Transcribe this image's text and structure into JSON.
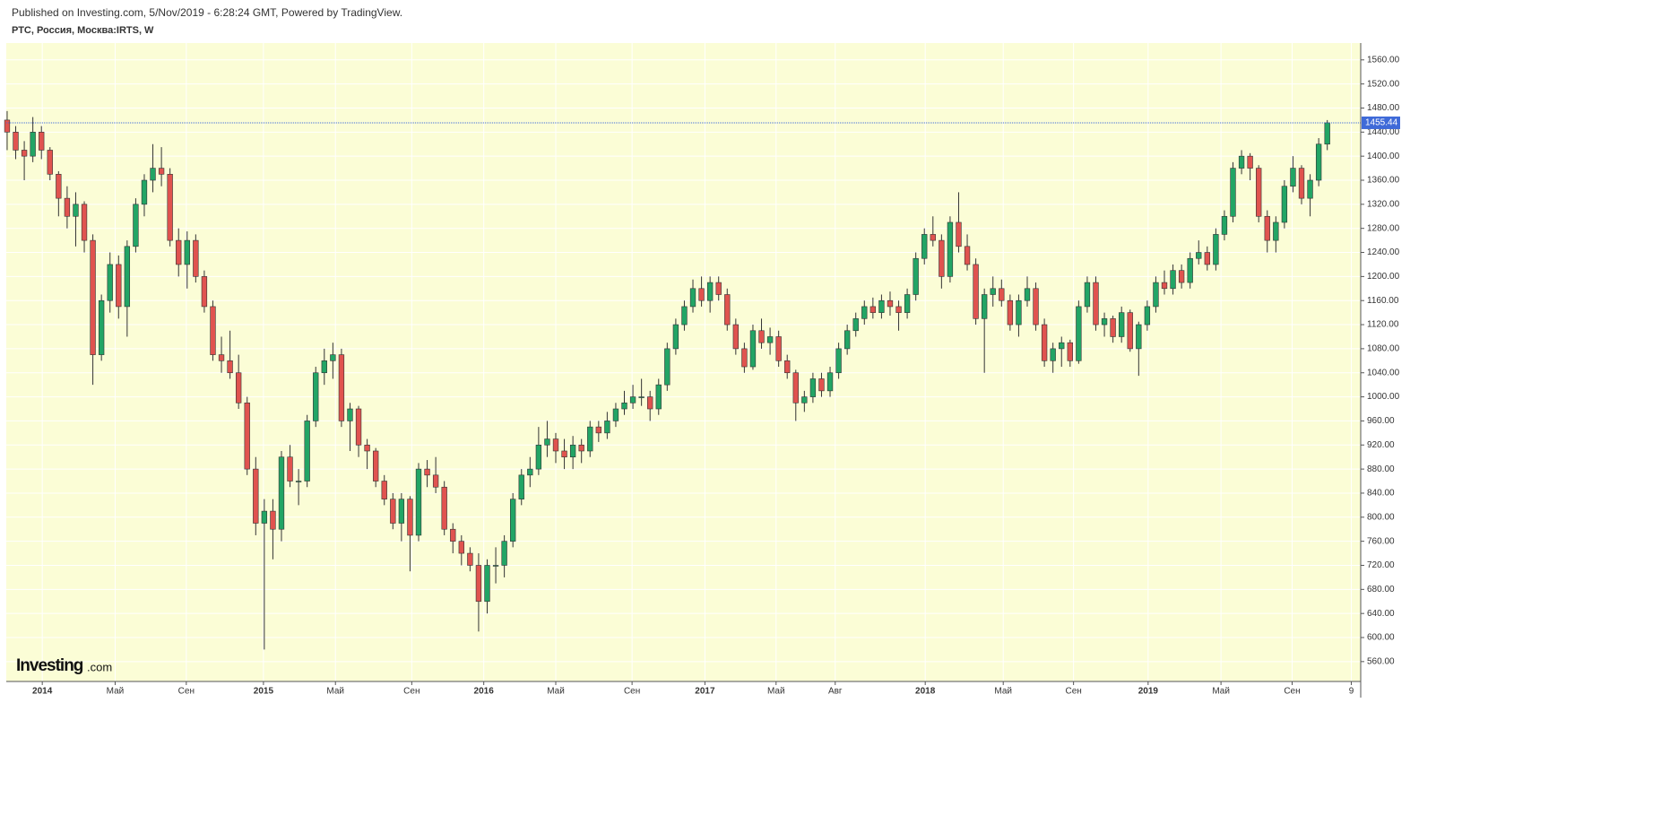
{
  "header": {
    "published": "Published on Investing.com, 5/Nov/2019 - 6:28:24 GMT, Powered by TradingView.",
    "symbol": "РТС, Россия, Москва:IRTS, W"
  },
  "logo": {
    "brand": "Investing",
    "suffix": ".com"
  },
  "chart_data": {
    "type": "candlestick",
    "up_color": "#22a565",
    "down_color": "#e0534f",
    "background": "#fbfdd6",
    "last_price_color": "#3f6ad8",
    "grid": true,
    "xlim": [
      -0.1,
      157.9
    ],
    "ylim": [
      527,
      1588
    ],
    "xticks": [
      {
        "value": 4.1,
        "label": "2014"
      },
      {
        "value": 12.6,
        "label": "Май"
      },
      {
        "value": 20.9,
        "label": "Сен"
      },
      {
        "value": 29.9,
        "label": "2015"
      },
      {
        "value": 38.3,
        "label": "Май"
      },
      {
        "value": 47.2,
        "label": "Сен"
      },
      {
        "value": 55.6,
        "label": "2016"
      },
      {
        "value": 64.0,
        "label": "Май"
      },
      {
        "value": 72.9,
        "label": "Сен"
      },
      {
        "value": 81.4,
        "label": "2017"
      },
      {
        "value": 89.7,
        "label": "Май"
      },
      {
        "value": 96.6,
        "label": "Авг"
      },
      {
        "value": 107.1,
        "label": "2018"
      },
      {
        "value": 116.2,
        "label": "Май"
      },
      {
        "value": 124.4,
        "label": "Сен"
      },
      {
        "value": 133.1,
        "label": "2019"
      },
      {
        "value": 141.6,
        "label": "Май"
      },
      {
        "value": 149.9,
        "label": "Сен"
      },
      {
        "value": 156.8,
        "label": "9"
      }
    ],
    "yticks": [
      {
        "value": 560,
        "label": "560.00"
      },
      {
        "value": 600,
        "label": "600.00"
      },
      {
        "value": 640,
        "label": "640.00"
      },
      {
        "value": 680,
        "label": "680.00"
      },
      {
        "value": 720,
        "label": "720.00"
      },
      {
        "value": 760,
        "label": "760.00"
      },
      {
        "value": 800,
        "label": "800.00"
      },
      {
        "value": 840,
        "label": "840.00"
      },
      {
        "value": 880,
        "label": "880.00"
      },
      {
        "value": 920,
        "label": "920.00"
      },
      {
        "value": 960,
        "label": "960.00"
      },
      {
        "value": 1000,
        "label": "1000.00"
      },
      {
        "value": 1040,
        "label": "1040.00"
      },
      {
        "value": 1080,
        "label": "1080.00"
      },
      {
        "value": 1120,
        "label": "1120.00"
      },
      {
        "value": 1160,
        "label": "1160.00"
      },
      {
        "value": 1200,
        "label": "1200.00"
      },
      {
        "value": 1240,
        "label": "1240.00"
      },
      {
        "value": 1280,
        "label": "1280.00"
      },
      {
        "value": 1320,
        "label": "1320.00"
      },
      {
        "value": 1360,
        "label": "1360.00"
      },
      {
        "value": 1400,
        "label": "1400.00"
      },
      {
        "value": 1440,
        "label": "1440.00"
      },
      {
        "value": 1480,
        "label": "1480.00"
      },
      {
        "value": 1520,
        "label": "1520.00"
      },
      {
        "value": 1560,
        "label": "1560.00"
      }
    ],
    "candles": [
      [
        1460,
        1475,
        1410,
        1440
      ],
      [
        1440,
        1450,
        1395,
        1410
      ],
      [
        1410,
        1425,
        1360,
        1400
      ],
      [
        1400,
        1465,
        1390,
        1440
      ],
      [
        1440,
        1450,
        1395,
        1410
      ],
      [
        1410,
        1415,
        1360,
        1370
      ],
      [
        1370,
        1375,
        1300,
        1330
      ],
      [
        1330,
        1350,
        1280,
        1300
      ],
      [
        1300,
        1340,
        1250,
        1320
      ],
      [
        1320,
        1325,
        1240,
        1260
      ],
      [
        1260,
        1270,
        1020,
        1070
      ],
      [
        1070,
        1170,
        1060,
        1160
      ],
      [
        1160,
        1240,
        1140,
        1220
      ],
      [
        1220,
        1235,
        1130,
        1150
      ],
      [
        1150,
        1260,
        1100,
        1250
      ],
      [
        1250,
        1330,
        1240,
        1320
      ],
      [
        1320,
        1370,
        1300,
        1360
      ],
      [
        1360,
        1420,
        1340,
        1380
      ],
      [
        1380,
        1415,
        1350,
        1370
      ],
      [
        1370,
        1380,
        1250,
        1260
      ],
      [
        1260,
        1280,
        1200,
        1220
      ],
      [
        1220,
        1275,
        1180,
        1260
      ],
      [
        1260,
        1270,
        1190,
        1200
      ],
      [
        1200,
        1210,
        1140,
        1150
      ],
      [
        1150,
        1160,
        1060,
        1070
      ],
      [
        1070,
        1100,
        1040,
        1060
      ],
      [
        1060,
        1110,
        1030,
        1040
      ],
      [
        1040,
        1070,
        980,
        990
      ],
      [
        990,
        1000,
        870,
        880
      ],
      [
        880,
        900,
        770,
        790
      ],
      [
        790,
        830,
        580,
        810
      ],
      [
        810,
        830,
        730,
        780
      ],
      [
        780,
        910,
        760,
        900
      ],
      [
        900,
        920,
        850,
        860
      ],
      [
        860,
        880,
        820,
        860
      ],
      [
        860,
        970,
        850,
        960
      ],
      [
        960,
        1050,
        950,
        1040
      ],
      [
        1040,
        1080,
        1020,
        1060
      ],
      [
        1060,
        1090,
        1030,
        1070
      ],
      [
        1070,
        1080,
        950,
        960
      ],
      [
        960,
        990,
        910,
        980
      ],
      [
        980,
        985,
        900,
        920
      ],
      [
        920,
        930,
        880,
        910
      ],
      [
        910,
        915,
        850,
        860
      ],
      [
        860,
        870,
        820,
        830
      ],
      [
        830,
        840,
        780,
        790
      ],
      [
        790,
        840,
        760,
        830
      ],
      [
        830,
        835,
        710,
        770
      ],
      [
        770,
        890,
        760,
        880
      ],
      [
        880,
        895,
        850,
        870
      ],
      [
        870,
        900,
        840,
        850
      ],
      [
        850,
        860,
        770,
        780
      ],
      [
        780,
        790,
        740,
        760
      ],
      [
        760,
        770,
        720,
        740
      ],
      [
        740,
        750,
        710,
        720
      ],
      [
        720,
        740,
        610,
        660
      ],
      [
        660,
        730,
        640,
        720
      ],
      [
        720,
        750,
        690,
        720
      ],
      [
        720,
        770,
        700,
        760
      ],
      [
        760,
        840,
        750,
        830
      ],
      [
        830,
        880,
        820,
        870
      ],
      [
        870,
        900,
        850,
        880
      ],
      [
        880,
        950,
        870,
        920
      ],
      [
        920,
        960,
        900,
        930
      ],
      [
        930,
        940,
        890,
        910
      ],
      [
        910,
        930,
        880,
        900
      ],
      [
        900,
        935,
        880,
        920
      ],
      [
        920,
        930,
        890,
        910
      ],
      [
        910,
        960,
        900,
        950
      ],
      [
        950,
        960,
        925,
        940
      ],
      [
        940,
        975,
        930,
        960
      ],
      [
        960,
        990,
        950,
        980
      ],
      [
        980,
        1010,
        970,
        990
      ],
      [
        990,
        1020,
        980,
        1000
      ],
      [
        1000,
        1030,
        985,
        1000
      ],
      [
        1000,
        1010,
        960,
        980
      ],
      [
        980,
        1030,
        970,
        1020
      ],
      [
        1020,
        1090,
        1010,
        1080
      ],
      [
        1080,
        1130,
        1070,
        1120
      ],
      [
        1120,
        1160,
        1110,
        1150
      ],
      [
        1150,
        1195,
        1140,
        1180
      ],
      [
        1180,
        1200,
        1150,
        1160
      ],
      [
        1160,
        1200,
        1140,
        1190
      ],
      [
        1190,
        1200,
        1160,
        1170
      ],
      [
        1170,
        1180,
        1110,
        1120
      ],
      [
        1120,
        1130,
        1070,
        1080
      ],
      [
        1080,
        1090,
        1040,
        1050
      ],
      [
        1050,
        1120,
        1045,
        1110
      ],
      [
        1110,
        1130,
        1080,
        1090
      ],
      [
        1090,
        1115,
        1070,
        1100
      ],
      [
        1100,
        1110,
        1050,
        1060
      ],
      [
        1060,
        1070,
        1030,
        1040
      ],
      [
        1040,
        1045,
        960,
        990
      ],
      [
        990,
        1010,
        975,
        1000
      ],
      [
        1000,
        1040,
        990,
        1030
      ],
      [
        1030,
        1040,
        1000,
        1010
      ],
      [
        1010,
        1050,
        1000,
        1040
      ],
      [
        1040,
        1090,
        1030,
        1080
      ],
      [
        1080,
        1120,
        1070,
        1110
      ],
      [
        1110,
        1140,
        1100,
        1130
      ],
      [
        1130,
        1160,
        1120,
        1150
      ],
      [
        1150,
        1165,
        1130,
        1140
      ],
      [
        1140,
        1170,
        1130,
        1160
      ],
      [
        1160,
        1175,
        1135,
        1150
      ],
      [
        1150,
        1160,
        1110,
        1140
      ],
      [
        1140,
        1180,
        1130,
        1170
      ],
      [
        1170,
        1240,
        1160,
        1230
      ],
      [
        1230,
        1280,
        1220,
        1270
      ],
      [
        1270,
        1300,
        1250,
        1260
      ],
      [
        1260,
        1270,
        1180,
        1200
      ],
      [
        1200,
        1300,
        1190,
        1290
      ],
      [
        1290,
        1340,
        1240,
        1250
      ],
      [
        1250,
        1270,
        1210,
        1220
      ],
      [
        1220,
        1230,
        1120,
        1130
      ],
      [
        1130,
        1180,
        1040,
        1170
      ],
      [
        1170,
        1200,
        1150,
        1180
      ],
      [
        1180,
        1195,
        1150,
        1160
      ],
      [
        1160,
        1170,
        1110,
        1120
      ],
      [
        1120,
        1170,
        1100,
        1160
      ],
      [
        1160,
        1200,
        1150,
        1180
      ],
      [
        1180,
        1190,
        1110,
        1120
      ],
      [
        1120,
        1130,
        1050,
        1060
      ],
      [
        1060,
        1090,
        1040,
        1080
      ],
      [
        1080,
        1100,
        1050,
        1090
      ],
      [
        1090,
        1095,
        1050,
        1060
      ],
      [
        1060,
        1160,
        1055,
        1150
      ],
      [
        1150,
        1200,
        1140,
        1190
      ],
      [
        1190,
        1200,
        1110,
        1120
      ],
      [
        1120,
        1140,
        1100,
        1130
      ],
      [
        1130,
        1135,
        1090,
        1100
      ],
      [
        1100,
        1150,
        1090,
        1140
      ],
      [
        1140,
        1145,
        1075,
        1080
      ],
      [
        1080,
        1125,
        1035,
        1120
      ],
      [
        1120,
        1160,
        1110,
        1150
      ],
      [
        1150,
        1200,
        1140,
        1190
      ],
      [
        1190,
        1210,
        1170,
        1180
      ],
      [
        1180,
        1220,
        1170,
        1210
      ],
      [
        1210,
        1220,
        1180,
        1190
      ],
      [
        1190,
        1240,
        1180,
        1230
      ],
      [
        1230,
        1260,
        1220,
        1240
      ],
      [
        1240,
        1250,
        1210,
        1220
      ],
      [
        1220,
        1280,
        1210,
        1270
      ],
      [
        1270,
        1310,
        1260,
        1300
      ],
      [
        1300,
        1390,
        1290,
        1380
      ],
      [
        1380,
        1410,
        1370,
        1400
      ],
      [
        1400,
        1405,
        1360,
        1380
      ],
      [
        1380,
        1385,
        1290,
        1300
      ],
      [
        1300,
        1310,
        1240,
        1260
      ],
      [
        1260,
        1300,
        1240,
        1290
      ],
      [
        1290,
        1360,
        1280,
        1350
      ],
      [
        1350,
        1400,
        1340,
        1380
      ],
      [
        1380,
        1385,
        1320,
        1330
      ],
      [
        1330,
        1370,
        1300,
        1360
      ],
      [
        1360,
        1430,
        1350,
        1420
      ],
      [
        1420,
        1460,
        1410,
        1455.44
      ]
    ]
  }
}
